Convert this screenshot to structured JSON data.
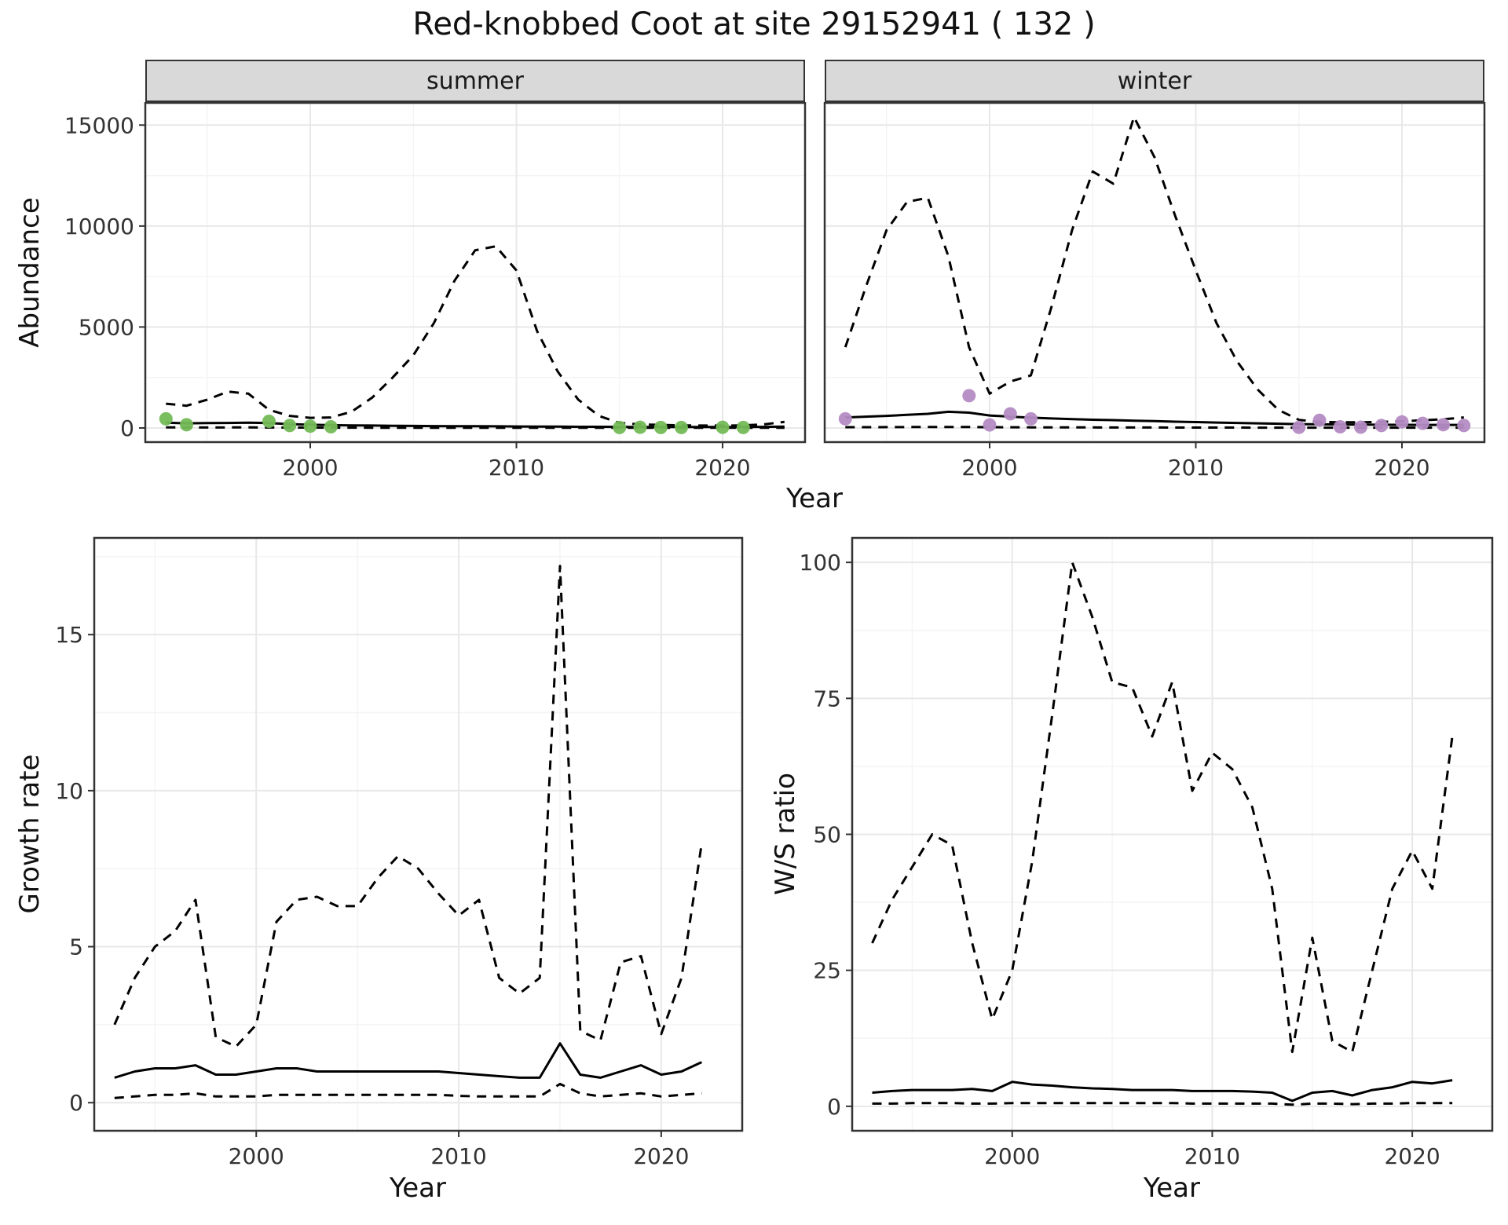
{
  "title": "Red-knobbed Coot at site 29152941 ( 132 )",
  "labels": {
    "x_axis_top": "Year",
    "x_axis_growth": "Year",
    "x_axis_ws": "Year",
    "abundance": "Abundance",
    "growth": "Growth rate",
    "ws": "W/S ratio",
    "facet_summer": "summer",
    "facet_winter": "winter"
  },
  "colors": {
    "line": "#000000",
    "summer_point": "#73bb57",
    "winter_point": "#b48cc4",
    "strip_bg": "#d9d9d9",
    "panel_border": "#333333",
    "grid_major": "#e8e8e8",
    "grid_minor": "#f4f4f4",
    "tick_text": "#333333"
  },
  "chart_data": [
    {
      "id": "summer_abundance",
      "type": "line",
      "facet": "summer",
      "xlabel": "Year",
      "ylabel": "Abundance",
      "xlim": [
        1992,
        2024
      ],
      "ylim": [
        -700,
        16100
      ],
      "xticks": [
        2000,
        2010,
        2020
      ],
      "yticks": [
        0,
        5000,
        10000,
        15000
      ],
      "show_y_labels": true,
      "x": [
        1993,
        1994,
        1995,
        1996,
        1997,
        1998,
        1999,
        2000,
        2001,
        2002,
        2003,
        2004,
        2005,
        2006,
        2007,
        2008,
        2009,
        2010,
        2011,
        2012,
        2013,
        2014,
        2015,
        2016,
        2017,
        2018,
        2019,
        2020,
        2021,
        2022,
        2023
      ],
      "series": [
        {
          "name": "upper_ci",
          "style": "dashed",
          "values": [
            1200,
            1100,
            1400,
            1800,
            1700,
            900,
            600,
            500,
            520,
            800,
            1500,
            2500,
            3600,
            5200,
            7300,
            8800,
            9000,
            7800,
            4800,
            2800,
            1400,
            600,
            250,
            180,
            150,
            130,
            120,
            120,
            130,
            180,
            300
          ]
        },
        {
          "name": "median",
          "style": "solid",
          "values": [
            260,
            230,
            240,
            250,
            260,
            240,
            190,
            160,
            140,
            130,
            120,
            110,
            100,
            95,
            90,
            85,
            80,
            75,
            70,
            65,
            60,
            58,
            55,
            52,
            50,
            48,
            48,
            48,
            50,
            55,
            65
          ]
        },
        {
          "name": "lower_ci",
          "style": "dashed",
          "values": [
            30,
            25,
            25,
            28,
            28,
            25,
            20,
            18,
            15,
            14,
            13,
            12,
            11,
            10,
            10,
            9,
            9,
            8,
            8,
            8,
            7,
            7,
            7,
            6,
            6,
            6,
            6,
            6,
            6,
            7,
            8
          ]
        }
      ],
      "points": {
        "name": "observed_counts",
        "color_key": "summer_point",
        "x": [
          1993,
          1994,
          1998,
          1999,
          2000,
          2001,
          2015,
          2016,
          2017,
          2018,
          2020,
          2021
        ],
        "y": [
          450,
          160,
          330,
          120,
          90,
          60,
          25,
          35,
          25,
          25,
          35,
          25
        ]
      }
    },
    {
      "id": "winter_abundance",
      "type": "line",
      "facet": "winter",
      "xlabel": "Year",
      "ylabel": "Abundance",
      "xlim": [
        1992,
        2024
      ],
      "ylim": [
        -700,
        16100
      ],
      "xticks": [
        2000,
        2010,
        2020
      ],
      "yticks": [
        0,
        5000,
        10000,
        15000
      ],
      "show_y_labels": false,
      "x": [
        1993,
        1994,
        1995,
        1996,
        1997,
        1998,
        1999,
        2000,
        2001,
        2002,
        2003,
        2004,
        2005,
        2006,
        2007,
        2008,
        2009,
        2010,
        2011,
        2012,
        2013,
        2014,
        2015,
        2016,
        2017,
        2018,
        2019,
        2020,
        2021,
        2022,
        2023
      ],
      "series": [
        {
          "name": "upper_ci",
          "style": "dashed",
          "values": [
            4000,
            7000,
            9800,
            11200,
            11400,
            8500,
            4000,
            1700,
            2300,
            2600,
            6000,
            9800,
            12700,
            12100,
            15400,
            13400,
            10500,
            7800,
            5200,
            3300,
            1900,
            900,
            400,
            300,
            280,
            280,
            300,
            330,
            380,
            430,
            520
          ]
        },
        {
          "name": "median",
          "style": "solid",
          "values": [
            520,
            560,
            600,
            650,
            700,
            800,
            760,
            620,
            560,
            510,
            470,
            440,
            410,
            390,
            360,
            340,
            310,
            290,
            270,
            250,
            230,
            210,
            190,
            180,
            170,
            165,
            160,
            155,
            150,
            150,
            150
          ]
        },
        {
          "name": "lower_ci",
          "style": "dashed",
          "values": [
            40,
            40,
            42,
            45,
            48,
            50,
            45,
            40,
            36,
            33,
            30,
            28,
            26,
            24,
            23,
            22,
            21,
            20,
            19,
            18,
            17,
            16,
            15,
            15,
            14,
            14,
            14,
            14,
            14,
            15,
            16
          ]
        }
      ],
      "points": {
        "name": "observed_counts",
        "color_key": "winter_point",
        "x": [
          1993,
          1999,
          2000,
          2001,
          2002,
          2015,
          2016,
          2017,
          2018,
          2019,
          2020,
          2021,
          2022,
          2023
        ],
        "y": [
          450,
          1600,
          150,
          700,
          450,
          30,
          380,
          60,
          40,
          120,
          300,
          230,
          160,
          120
        ]
      }
    },
    {
      "id": "growth_rate",
      "type": "line",
      "xlabel": "Year",
      "ylabel": "Growth rate",
      "xlim": [
        1992,
        2024
      ],
      "ylim": [
        -0.9,
        18.1
      ],
      "xticks": [
        2000,
        2010,
        2020
      ],
      "yticks": [
        0,
        5,
        10,
        15
      ],
      "show_y_labels": true,
      "x": [
        1993,
        1994,
        1995,
        1996,
        1997,
        1998,
        1999,
        2000,
        2001,
        2002,
        2003,
        2004,
        2005,
        2006,
        2007,
        2008,
        2009,
        2010,
        2011,
        2012,
        2013,
        2014,
        2015,
        2016,
        2017,
        2018,
        2019,
        2020,
        2021,
        2022
      ],
      "series": [
        {
          "name": "upper_ci",
          "style": "dashed",
          "values": [
            2.5,
            4.0,
            5.0,
            5.5,
            6.5,
            2.1,
            1.8,
            2.5,
            5.8,
            6.5,
            6.6,
            6.3,
            6.3,
            7.2,
            7.9,
            7.5,
            6.7,
            6.0,
            6.5,
            4.0,
            3.5,
            4.0,
            17.2,
            2.3,
            2.0,
            4.5,
            4.7,
            2.2,
            4.0,
            8.3
          ]
        },
        {
          "name": "median",
          "style": "solid",
          "values": [
            0.8,
            1.0,
            1.1,
            1.1,
            1.2,
            0.9,
            0.9,
            1.0,
            1.1,
            1.1,
            1.0,
            1.0,
            1.0,
            1.0,
            1.0,
            1.0,
            1.0,
            0.95,
            0.9,
            0.85,
            0.8,
            0.8,
            1.9,
            0.9,
            0.8,
            1.0,
            1.2,
            0.9,
            1.0,
            1.3
          ]
        },
        {
          "name": "lower_ci",
          "style": "dashed",
          "values": [
            0.15,
            0.2,
            0.25,
            0.25,
            0.3,
            0.2,
            0.2,
            0.2,
            0.25,
            0.25,
            0.25,
            0.25,
            0.25,
            0.25,
            0.25,
            0.25,
            0.25,
            0.22,
            0.2,
            0.2,
            0.2,
            0.2,
            0.6,
            0.3,
            0.2,
            0.25,
            0.3,
            0.2,
            0.25,
            0.3
          ]
        }
      ]
    },
    {
      "id": "ws_ratio",
      "type": "line",
      "xlabel": "Year",
      "ylabel": "W/S ratio",
      "xlim": [
        1992,
        2024
      ],
      "ylim": [
        -4.5,
        104.5
      ],
      "xticks": [
        2000,
        2010,
        2020
      ],
      "yticks": [
        0,
        25,
        50,
        75,
        100
      ],
      "show_y_labels": true,
      "x": [
        1993,
        1994,
        1995,
        1996,
        1997,
        1998,
        1999,
        2000,
        2001,
        2002,
        2003,
        2004,
        2005,
        2006,
        2007,
        2008,
        2009,
        2010,
        2011,
        2012,
        2013,
        2014,
        2015,
        2016,
        2017,
        2018,
        2019,
        2020,
        2021,
        2022
      ],
      "series": [
        {
          "name": "upper_ci",
          "style": "dashed",
          "values": [
            30,
            38,
            44,
            50,
            48,
            30,
            16,
            25,
            45,
            72,
            100,
            90,
            78,
            77,
            68,
            78,
            58,
            65,
            62,
            55,
            40,
            10,
            31,
            12,
            10,
            25,
            40,
            47,
            40,
            68
          ]
        },
        {
          "name": "median",
          "style": "solid",
          "values": [
            2.5,
            2.8,
            3.0,
            3.0,
            3.0,
            3.2,
            2.8,
            4.5,
            4.0,
            3.8,
            3.5,
            3.3,
            3.2,
            3.0,
            3.0,
            3.0,
            2.8,
            2.8,
            2.8,
            2.7,
            2.5,
            1.0,
            2.5,
            2.8,
            2.0,
            3.0,
            3.5,
            4.5,
            4.2,
            4.8
          ]
        },
        {
          "name": "lower_ci",
          "style": "dashed",
          "values": [
            0.5,
            0.5,
            0.6,
            0.6,
            0.6,
            0.5,
            0.5,
            0.6,
            0.6,
            0.6,
            0.6,
            0.6,
            0.6,
            0.6,
            0.6,
            0.6,
            0.5,
            0.5,
            0.5,
            0.5,
            0.5,
            0.3,
            0.5,
            0.5,
            0.4,
            0.5,
            0.5,
            0.6,
            0.6,
            0.6
          ]
        }
      ]
    }
  ]
}
